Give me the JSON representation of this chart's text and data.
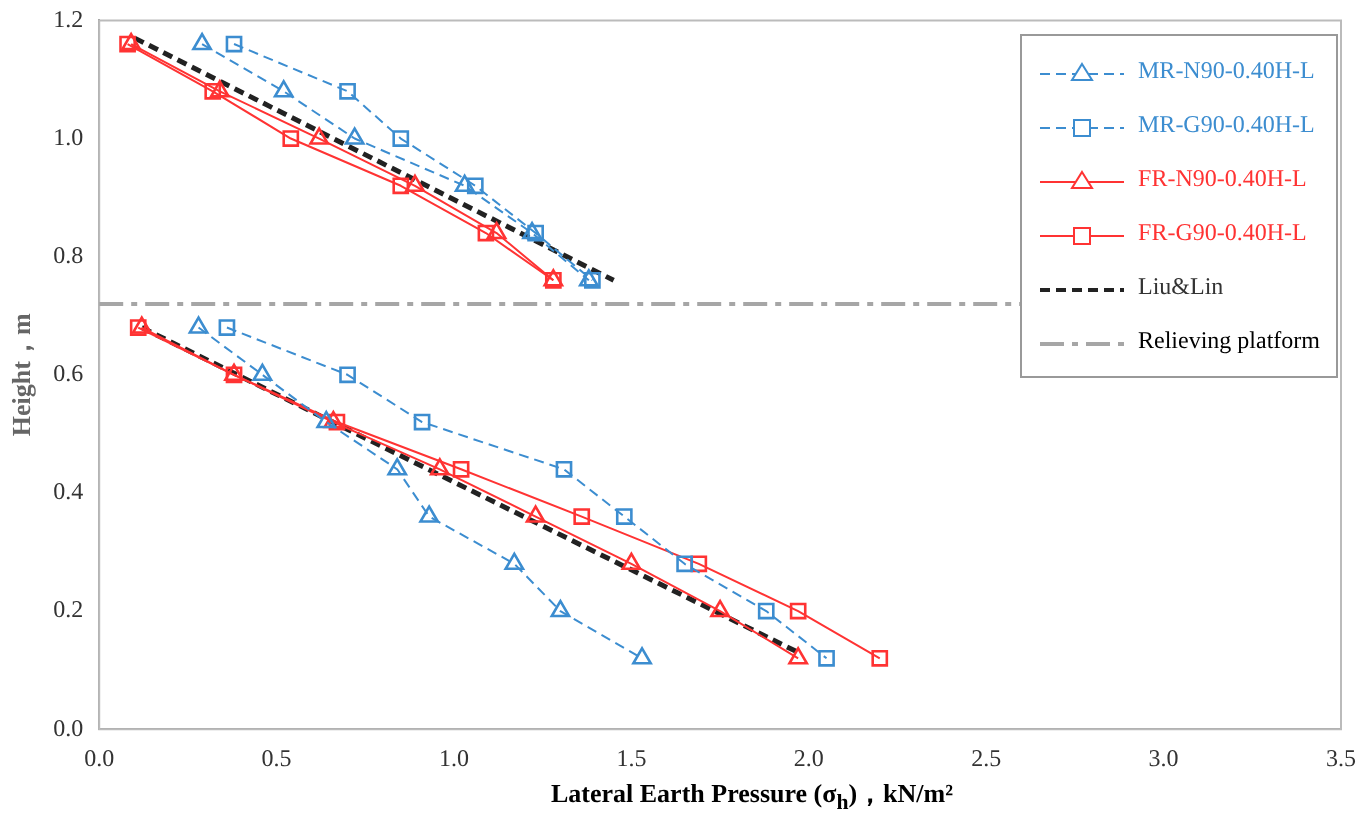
{
  "chart_data": {
    "type": "line",
    "xlabel": "Lateral Earth Pressure (σ$_{h}$)，kN/m²",
    "ylabel": "Height，m",
    "xlim": [
      0,
      3.5
    ],
    "ylim": [
      0,
      1.2
    ],
    "xticks": [
      {
        "value": 0,
        "label": "0.0"
      },
      0.5,
      {
        "value": 1,
        "label": "1.0"
      },
      1.5,
      {
        "value": 2,
        "label": "2.0"
      },
      2.5,
      {
        "value": 3,
        "label": "3.0"
      },
      3.5
    ],
    "yticks": [
      {
        "value": 0,
        "label": "0.0"
      },
      0.2,
      0.4,
      0.6,
      0.8,
      {
        "value": 1,
        "label": "1.0"
      },
      1.2
    ],
    "grid": false,
    "legend": "top right",
    "series": [
      {
        "name": "MR-N90-0.40H-L",
        "color": "#3c8dd0",
        "marker": "triangle",
        "line_style": "dashed",
        "x": [
          0.29,
          0.52,
          0.72,
          1.03,
          1.22,
          1.38
        ],
        "values": [
          1.16,
          1.08,
          1.0,
          0.92,
          0.84,
          0.76
        ]
      },
      {
        "name": "MR-G90-0.40H-L",
        "color": "#3c8dd0",
        "marker": "square",
        "line_style": "dashed",
        "x": [
          0.38,
          0.7,
          0.85,
          1.06,
          1.23,
          1.39
        ],
        "values": [
          1.16,
          1.08,
          1.0,
          0.92,
          0.84,
          0.76
        ]
      },
      {
        "name": "FR-N90-0.40H-L",
        "color": "#ff3333",
        "marker": "triangle",
        "line_style": "solid",
        "x": [
          0.09,
          0.34,
          0.62,
          0.89,
          1.12,
          1.28
        ],
        "values": [
          1.16,
          1.08,
          1.0,
          0.92,
          0.84,
          0.76
        ]
      },
      {
        "name": "FR-G90-0.40H-L",
        "color": "#ff3333",
        "marker": "square",
        "line_style": "solid",
        "x": [
          0.08,
          0.32,
          0.54,
          0.85,
          1.09,
          1.28
        ],
        "values": [
          1.16,
          1.08,
          1.0,
          0.92,
          0.84,
          0.76
        ]
      },
      {
        "name": "Liu&Lin",
        "color": "#222222",
        "marker": "none",
        "line_style": "dashed",
        "x": [
          0.1,
          1.45
        ],
        "values": [
          1.17,
          0.76
        ]
      },
      {
        "color": "#3c8dd0",
        "marker": "triangle",
        "line_style": "dashed",
        "x": [
          0.28,
          0.46,
          0.64,
          0.84,
          0.93,
          1.17,
          1.3,
          1.53
        ],
        "values": [
          0.68,
          0.6,
          0.52,
          0.44,
          0.36,
          0.28,
          0.2,
          0.12
        ]
      },
      {
        "color": "#3c8dd0",
        "marker": "square",
        "line_style": "dashed",
        "x": [
          0.36,
          0.7,
          0.91,
          1.31,
          1.48,
          1.65,
          1.88,
          2.05
        ],
        "values": [
          0.68,
          0.6,
          0.52,
          0.44,
          0.36,
          0.28,
          0.2,
          0.12
        ]
      },
      {
        "color": "#ff3333",
        "marker": "triangle",
        "line_style": "solid",
        "x": [
          0.12,
          0.38,
          0.66,
          0.96,
          1.23,
          1.5,
          1.75,
          1.97
        ],
        "values": [
          0.68,
          0.6,
          0.52,
          0.44,
          0.36,
          0.28,
          0.2,
          0.12
        ]
      },
      {
        "color": "#ff3333",
        "marker": "square",
        "line_style": "solid",
        "x": [
          0.11,
          0.38,
          0.67,
          1.02,
          1.36,
          1.69,
          1.97,
          2.2
        ],
        "values": [
          0.68,
          0.6,
          0.52,
          0.44,
          0.36,
          0.28,
          0.2,
          0.12
        ]
      },
      {
        "color": "#222222",
        "marker": "none",
        "line_style": "dashed",
        "x": [
          0.12,
          1.97
        ],
        "values": [
          0.68,
          0.13
        ]
      }
    ],
    "ref_lines": [
      {
        "axis": "y",
        "value": 0.72,
        "label": "Relieving platform",
        "color": "#a6a6a6",
        "line_style": "dashdot"
      }
    ]
  }
}
